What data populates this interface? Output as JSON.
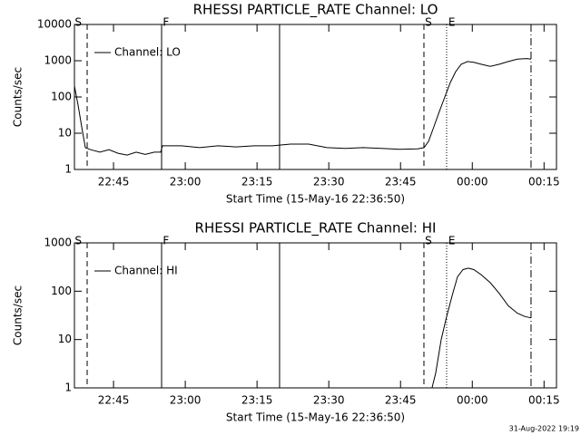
{
  "chart_data": [
    {
      "type": "line",
      "title": "RHESSI PARTICLE_RATE Channel: LO",
      "xlabel": "Start Time (15-May-16 22:36:50)",
      "ylabel": "Counts/sec",
      "log_y": true,
      "ylim": [
        1,
        10000
      ],
      "yticks": [
        1,
        10,
        100,
        1000,
        10000
      ],
      "xlim": [
        1356.83,
        1457.6
      ],
      "xticks": [
        {
          "value": 1365,
          "label": "22:45"
        },
        {
          "value": 1380,
          "label": "23:00"
        },
        {
          "value": 1395,
          "label": "23:15"
        },
        {
          "value": 1410,
          "label": "23:30"
        },
        {
          "value": 1425,
          "label": "23:45"
        },
        {
          "value": 1440,
          "label": "00:00"
        },
        {
          "value": 1455,
          "label": "00:15"
        }
      ],
      "legend": "upper left",
      "vlines": [
        {
          "x": 1359.49,
          "style": "dashed"
        },
        {
          "x": 1375.05,
          "style": "solid"
        },
        {
          "x": 1399.71,
          "style": "solid"
        },
        {
          "x": 1429.89,
          "style": "dashed"
        },
        {
          "x": 1434.63,
          "style": "dotted"
        },
        {
          "x": 1452.28,
          "style": "dashdot"
        }
      ],
      "annotations": [
        {
          "text": "S",
          "x": 1356.9
        },
        {
          "text": "F",
          "x": 1375.3
        },
        {
          "text": "S",
          "x": 1430.1
        },
        {
          "text": "E",
          "x": 1435.0
        }
      ],
      "series": [
        {
          "name": "Channel: LO",
          "color": "#000000",
          "x": [
            1356.83,
            1357.59,
            1358.35,
            1359.11,
            1360.25,
            1362.14,
            1364.04,
            1365.94,
            1367.84,
            1369.73,
            1371.63,
            1373.53,
            1374.86,
            1375.24,
            1379.22,
            1383.02,
            1386.82,
            1390.61,
            1394.41,
            1398.21,
            1402.0,
            1405.8,
            1409.6,
            1413.39,
            1417.19,
            1420.99,
            1424.78,
            1428.58,
            1429.91,
            1430.86,
            1431.97,
            1433.11,
            1434.25,
            1435.39,
            1436.53,
            1437.67,
            1439.0,
            1440.32,
            1441.84,
            1443.74,
            1445.64,
            1447.53,
            1449.43,
            1451.33,
            1452.28
          ],
          "values": [
            200,
            60,
            15,
            4,
            3.5,
            3,
            3.5,
            2.8,
            2.5,
            3,
            2.6,
            3,
            3,
            4.5,
            4.5,
            4,
            4.5,
            4.2,
            4.5,
            4.5,
            5,
            5,
            4,
            3.8,
            4,
            3.8,
            3.6,
            3.7,
            4,
            6,
            15,
            40,
            100,
            250,
            500,
            800,
            950,
            900,
            800,
            700,
            800,
            950,
            1100,
            1150,
            1100
          ]
        }
      ]
    },
    {
      "type": "line",
      "title": "RHESSI PARTICLE_RATE Channel: HI",
      "xlabel": "Start Time (15-May-16 22:36:50)",
      "ylabel": "Counts/sec",
      "log_y": true,
      "ylim": [
        1,
        1000
      ],
      "yticks": [
        1,
        10,
        100,
        1000
      ],
      "xlim": [
        1356.83,
        1457.6
      ],
      "xticks": [
        {
          "value": 1365,
          "label": "22:45"
        },
        {
          "value": 1380,
          "label": "23:00"
        },
        {
          "value": 1395,
          "label": "23:15"
        },
        {
          "value": 1410,
          "label": "23:30"
        },
        {
          "value": 1425,
          "label": "23:45"
        },
        {
          "value": 1440,
          "label": "00:00"
        },
        {
          "value": 1455,
          "label": "00:15"
        }
      ],
      "legend": "upper left",
      "vlines": [
        {
          "x": 1359.49,
          "style": "dashed"
        },
        {
          "x": 1375.05,
          "style": "solid"
        },
        {
          "x": 1399.71,
          "style": "solid"
        },
        {
          "x": 1429.89,
          "style": "dashed"
        },
        {
          "x": 1434.63,
          "style": "dotted"
        },
        {
          "x": 1452.28,
          "style": "dashdot"
        }
      ],
      "annotations": [
        {
          "text": "S",
          "x": 1356.9
        },
        {
          "text": "F",
          "x": 1375.3
        },
        {
          "text": "S",
          "x": 1430.1
        },
        {
          "text": "E",
          "x": 1435.0
        }
      ],
      "series": [
        {
          "name": "Channel: HI",
          "color": "#000000",
          "x": [
            1431.59,
            1432.35,
            1433.49,
            1434.63,
            1435.77,
            1436.91,
            1438.05,
            1439.18,
            1440.32,
            1441.84,
            1443.74,
            1445.64,
            1447.53,
            1449.43,
            1450.95,
            1452.28
          ],
          "values": [
            1,
            2,
            10,
            30,
            80,
            200,
            280,
            300,
            280,
            220,
            150,
            90,
            50,
            35,
            30,
            28
          ]
        }
      ]
    }
  ],
  "timestamp": "31-Aug-2022 19:19"
}
